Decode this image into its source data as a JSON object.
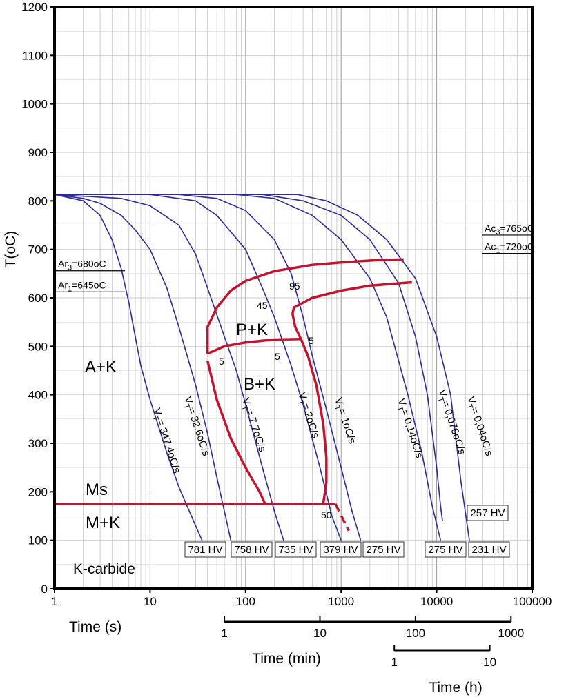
{
  "chart_data": {
    "type": "line",
    "title": "",
    "ylabel": "T(oC)",
    "xlabel": "Time (s)",
    "x_scale": "log",
    "xlim": [
      1,
      100000
    ],
    "ylim": [
      0,
      1200
    ],
    "grid": true,
    "x_ticks": [
      "1",
      "10",
      "100",
      "1000",
      "10000",
      "100000"
    ],
    "y_ticks": [
      "0",
      "100",
      "200",
      "300",
      "400",
      "500",
      "600",
      "700",
      "800",
      "900",
      "1000",
      "1100",
      "1200"
    ],
    "secondary_axes": [
      {
        "label": "Time (min)",
        "ticks": [
          "1",
          "10",
          "100",
          "1000"
        ]
      },
      {
        "label": "Time (h)",
        "ticks": [
          "1",
          "10"
        ]
      }
    ],
    "reference_lines": [
      {
        "sub": "Ar",
        "idx": "3",
        "text": "=680oC",
        "y": 680
      },
      {
        "sub": "Ar",
        "idx": "1",
        "text": "=645oC",
        "y": 645
      },
      {
        "sub": "Ac",
        "idx": "3",
        "text": "=765oC",
        "y": 765
      },
      {
        "sub": "Ac",
        "idx": "1",
        "text": "=720oC",
        "y": 720
      }
    ],
    "cooling_curves": [
      {
        "pre": "V",
        "sub": "T",
        "rate": "= 347,4oC/s",
        "end_x": 35,
        "hardness": "781 HV",
        "points": [
          [
            1,
            813
          ],
          [
            2,
            800
          ],
          [
            3,
            770
          ],
          [
            4,
            720
          ],
          [
            5,
            660
          ],
          [
            6,
            590
          ],
          [
            7,
            520
          ],
          [
            8,
            460
          ],
          [
            10,
            390
          ],
          [
            15,
            280
          ],
          [
            20,
            210
          ],
          [
            30,
            130
          ],
          [
            35,
            100
          ]
        ]
      },
      {
        "pre": "V",
        "sub": "T",
        "rate": "= 32,6oC/s",
        "end_x": 70,
        "hardness": "758 HV",
        "points": [
          [
            1,
            813
          ],
          [
            2,
            805
          ],
          [
            3,
            795
          ],
          [
            5,
            770
          ],
          [
            7,
            740
          ],
          [
            10,
            700
          ],
          [
            15,
            620
          ],
          [
            20,
            540
          ],
          [
            30,
            420
          ],
          [
            40,
            320
          ],
          [
            50,
            230
          ],
          [
            60,
            160
          ],
          [
            70,
            100
          ]
        ]
      },
      {
        "pre": "V",
        "sub": "T",
        "rate": "= 7,7oC/s",
        "end_x": 250,
        "hardness": "735 HV",
        "points": [
          [
            1,
            813
          ],
          [
            5,
            805
          ],
          [
            10,
            790
          ],
          [
            20,
            750
          ],
          [
            30,
            690
          ],
          [
            40,
            620
          ],
          [
            60,
            520
          ],
          [
            80,
            450
          ],
          [
            100,
            380
          ],
          [
            150,
            250
          ],
          [
            200,
            160
          ],
          [
            250,
            100
          ]
        ]
      },
      {
        "pre": "V",
        "sub": "T",
        "rate": "= 2oC/s",
        "end_x": 1000,
        "hardness": "379 HV",
        "points": [
          [
            1,
            813
          ],
          [
            10,
            813
          ],
          [
            30,
            800
          ],
          [
            50,
            770
          ],
          [
            100,
            700
          ],
          [
            150,
            620
          ],
          [
            200,
            560
          ],
          [
            300,
            460
          ],
          [
            400,
            380
          ],
          [
            600,
            250
          ],
          [
            800,
            150
          ],
          [
            1000,
            100
          ]
        ]
      },
      {
        "pre": "V",
        "sub": "T",
        "rate": "= 1oC/s",
        "end_x": 1600,
        "hardness": "275 HV",
        "points": [
          [
            1,
            813
          ],
          [
            20,
            813
          ],
          [
            50,
            805
          ],
          [
            100,
            780
          ],
          [
            200,
            720
          ],
          [
            300,
            650
          ],
          [
            400,
            560
          ],
          [
            500,
            480
          ],
          [
            700,
            370
          ],
          [
            1000,
            250
          ],
          [
            1300,
            160
          ],
          [
            1600,
            100
          ]
        ]
      },
      {
        "pre": "V",
        "sub": "T",
        "rate": "= 0,14oC/s",
        "end_x": 11000,
        "hardness": "275 HV",
        "points": [
          [
            1,
            813
          ],
          [
            80,
            813
          ],
          [
            200,
            805
          ],
          [
            500,
            770
          ],
          [
            1000,
            720
          ],
          [
            2000,
            640
          ],
          [
            3000,
            560
          ],
          [
            5000,
            400
          ],
          [
            7000,
            280
          ],
          [
            9000,
            170
          ],
          [
            11000,
            100
          ]
        ]
      },
      {
        "pre": "V",
        "sub": "T",
        "rate": "= 0,076oC/s",
        "end_x": 11500,
        "hardness": "257 HV",
        "points": [
          [
            1,
            813
          ],
          [
            150,
            813
          ],
          [
            400,
            800
          ],
          [
            1000,
            770
          ],
          [
            2000,
            720
          ],
          [
            4000,
            630
          ],
          [
            6000,
            520
          ],
          [
            8000,
            400
          ],
          [
            10000,
            250
          ],
          [
            11000,
            170
          ],
          [
            11500,
            140
          ]
        ]
      },
      {
        "pre": "V",
        "sub": "T",
        "rate": "= 0,04oC/s",
        "end_x": 22000,
        "hardness": "231 HV",
        "points": [
          [
            1,
            813
          ],
          [
            350,
            813
          ],
          [
            700,
            800
          ],
          [
            1500,
            770
          ],
          [
            3000,
            720
          ],
          [
            6000,
            640
          ],
          [
            10000,
            520
          ],
          [
            14000,
            400
          ],
          [
            18000,
            220
          ],
          [
            22000,
            100
          ]
        ]
      }
    ],
    "phase_boundaries": [
      {
        "name": "pearlite-start",
        "points": [
          [
            40,
            485
          ],
          [
            40,
            540
          ],
          [
            50,
            580
          ],
          [
            70,
            615
          ],
          [
            100,
            635
          ],
          [
            200,
            655
          ],
          [
            500,
            668
          ],
          [
            1000,
            673
          ],
          [
            2500,
            678
          ],
          [
            4500,
            679
          ]
        ]
      },
      {
        "name": "pearlite-finish",
        "points": [
          [
            310,
            567
          ],
          [
            320,
            580
          ],
          [
            500,
            600
          ],
          [
            1000,
            615
          ],
          [
            2000,
            625
          ],
          [
            5500,
            632
          ]
        ]
      },
      {
        "name": "pearlite-bainite-boundary",
        "points": [
          [
            40,
            485
          ],
          [
            60,
            500
          ],
          [
            100,
            508
          ],
          [
            200,
            514
          ],
          [
            380,
            515
          ]
        ]
      },
      {
        "name": "bainite-finish",
        "points": [
          [
            310,
            567
          ],
          [
            330,
            540
          ],
          [
            380,
            515
          ],
          [
            450,
            480
          ],
          [
            550,
            420
          ],
          [
            650,
            340
          ],
          [
            700,
            270
          ],
          [
            700,
            220
          ],
          [
            650,
            175
          ]
        ]
      },
      {
        "name": "martensite-start-boundary",
        "points": [
          [
            40,
            470
          ],
          [
            50,
            390
          ],
          [
            70,
            310
          ],
          [
            100,
            250
          ],
          [
            140,
            200
          ],
          [
            160,
            175
          ]
        ]
      },
      {
        "name": "Ms",
        "points": [
          [
            1,
            175
          ],
          [
            870,
            175
          ]
        ]
      },
      {
        "name": "Ms-extension",
        "points": [
          [
            870,
            175
          ],
          [
            950,
            160
          ],
          [
            1200,
            120
          ]
        ]
      }
    ],
    "phase_labels": [
      "P+K",
      "B+K",
      "A+K",
      "Ms",
      "M+K",
      "K-carbide"
    ],
    "transformation_percents": [
      "95",
      "45",
      "5",
      "5",
      "5",
      "50"
    ]
  }
}
